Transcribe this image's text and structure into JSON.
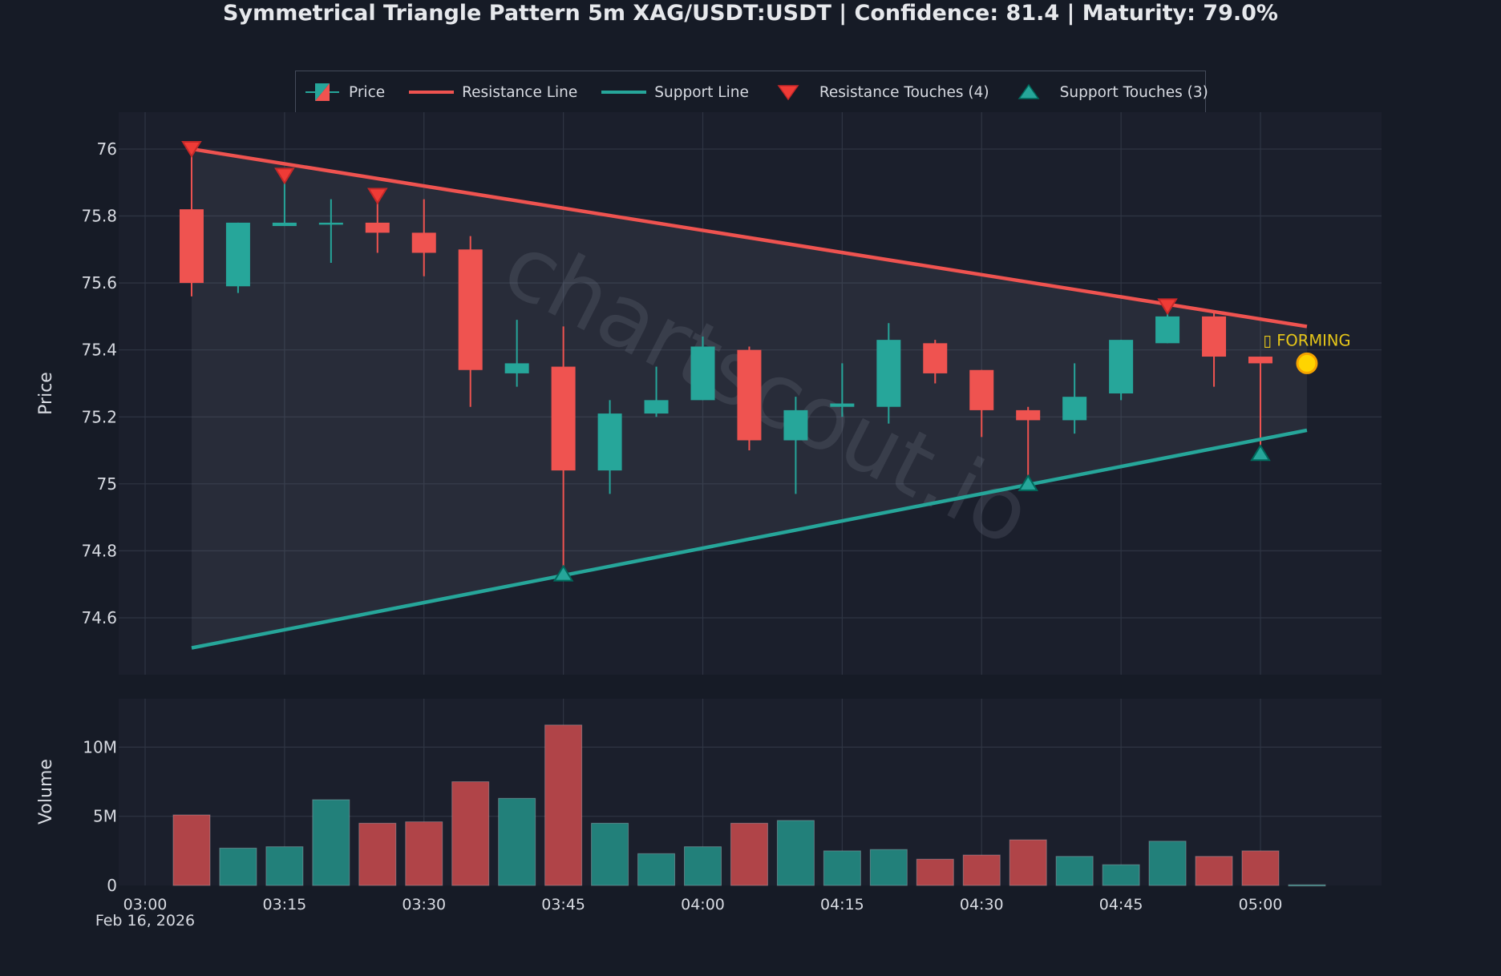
{
  "title": "Symmetrical Triangle Pattern 5m XAG/USDT:USDT | Confidence: 81.4 | Maturity: 79.0%",
  "legend": {
    "items": [
      {
        "label": "Price",
        "icon": "candlestick-icon"
      },
      {
        "label": "Resistance Line",
        "icon": "red-line-icon"
      },
      {
        "label": "Support Line",
        "icon": "teal-line-icon"
      },
      {
        "label": "Resistance Touches (4)",
        "icon": "triangle-down-icon"
      },
      {
        "label": "Support Touches (3)",
        "icon": "triangle-up-icon"
      }
    ]
  },
  "annotation": {
    "label": "▯ FORMING",
    "color": "#e6c619"
  },
  "watermark": "chartscout.io",
  "axes": {
    "price_label": "Price",
    "volume_label": "Volume",
    "date_label": "Feb 16, 2026"
  },
  "colors": {
    "background": "#161b26",
    "plot_bg": "#1b1f2c",
    "up": "#26a69a",
    "down": "#ef5350",
    "resistance": "#ef5350",
    "support": "#26a69a",
    "triangle_fill": "rgba(120,125,145,0.14)",
    "grid": "#2f3543",
    "forming": "#ffd400"
  },
  "chart_data": [
    {
      "type": "candlestick",
      "title": "Symmetrical Triangle Pattern 5m XAG/USDT:USDT | Confidence: 81.4 | Maturity: 79.0%",
      "xlabel": "",
      "ylabel": "Price",
      "ylim": [
        74.43,
        76.11
      ],
      "yticks": [
        74.6,
        74.8,
        75,
        75.2,
        75.4,
        75.6,
        75.8,
        76
      ],
      "ytick_labels": [
        "74.6",
        "74.8",
        "75",
        "75.2",
        "75.4",
        "75.6",
        "75.8",
        "76"
      ],
      "xticks": [
        "03:00",
        "03:15",
        "03:30",
        "03:45",
        "04:00",
        "04:15",
        "04:30",
        "04:45",
        "05:00"
      ],
      "grid": true,
      "legend_position": "top",
      "x": [
        "03:05",
        "03:10",
        "03:15",
        "03:20",
        "03:25",
        "03:30",
        "03:35",
        "03:40",
        "03:45",
        "03:50",
        "03:55",
        "04:00",
        "04:05",
        "04:10",
        "04:15",
        "04:20",
        "04:25",
        "04:30",
        "04:35",
        "04:40",
        "04:45",
        "04:50",
        "04:55",
        "05:00"
      ],
      "open": [
        75.82,
        75.59,
        75.77,
        75.78,
        75.78,
        75.75,
        75.7,
        75.33,
        75.35,
        75.04,
        75.21,
        75.25,
        75.4,
        75.13,
        75.23,
        75.23,
        75.42,
        75.34,
        75.22,
        75.19,
        75.27,
        75.42,
        75.5,
        75.38
      ],
      "high": [
        76.0,
        75.78,
        75.92,
        75.85,
        75.86,
        75.85,
        75.74,
        75.49,
        75.47,
        75.25,
        75.35,
        75.44,
        75.41,
        75.26,
        75.36,
        75.48,
        75.43,
        75.34,
        75.23,
        75.36,
        75.43,
        75.53,
        75.51,
        75.38
      ],
      "low": [
        75.56,
        75.57,
        75.77,
        75.66,
        75.69,
        75.62,
        75.23,
        75.29,
        74.73,
        74.97,
        75.2,
        75.25,
        75.1,
        74.97,
        75.2,
        75.18,
        75.3,
        75.14,
        75.0,
        75.15,
        75.25,
        75.42,
        75.29,
        75.09
      ],
      "close": [
        75.6,
        75.78,
        75.78,
        75.78,
        75.75,
        75.69,
        75.34,
        75.36,
        75.04,
        75.21,
        75.25,
        75.41,
        75.13,
        75.22,
        75.24,
        75.43,
        75.33,
        75.22,
        75.19,
        75.26,
        75.43,
        75.5,
        75.38,
        75.36
      ],
      "series": [
        {
          "name": "Resistance Line",
          "x": [
            "03:05",
            "05:05"
          ],
          "values": [
            76.0,
            75.47
          ]
        },
        {
          "name": "Support Line",
          "x": [
            "03:05",
            "05:05"
          ],
          "values": [
            74.51,
            75.16
          ]
        },
        {
          "name": "Resistance Touches (4)",
          "x": [
            "03:05",
            "03:15",
            "03:25",
            "04:50"
          ],
          "values": [
            76.0,
            75.92,
            75.86,
            75.53
          ]
        },
        {
          "name": "Support Touches (3)",
          "x": [
            "03:45",
            "04:35",
            "05:00"
          ],
          "values": [
            74.73,
            75.0,
            75.09
          ]
        }
      ],
      "annotations": [
        {
          "text": "FORMING",
          "x": "05:05",
          "y": 75.36
        }
      ]
    },
    {
      "type": "bar",
      "ylabel": "Volume",
      "ylim": [
        0,
        13.5
      ],
      "yticks": [
        0,
        5,
        10
      ],
      "ytick_labels": [
        "0",
        "5M",
        "10M"
      ],
      "categories": [
        "03:05",
        "03:10",
        "03:15",
        "03:20",
        "03:25",
        "03:30",
        "03:35",
        "03:40",
        "03:45",
        "03:50",
        "03:55",
        "04:00",
        "04:05",
        "04:10",
        "04:15",
        "04:20",
        "04:25",
        "04:30",
        "04:35",
        "04:40",
        "04:45",
        "04:50",
        "04:55",
        "05:00",
        "05:05"
      ],
      "values": [
        5.1,
        2.7,
        2.8,
        6.2,
        4.5,
        4.6,
        7.5,
        6.3,
        11.6,
        4.5,
        2.3,
        2.8,
        4.5,
        4.7,
        2.5,
        2.6,
        1.9,
        2.2,
        3.3,
        2.1,
        1.5,
        3.2,
        2.1,
        2.5,
        0.05
      ],
      "unit": "M",
      "colors_by_direction": [
        "down",
        "up",
        "up",
        "up",
        "down",
        "down",
        "down",
        "up",
        "down",
        "up",
        "up",
        "up",
        "down",
        "up",
        "up",
        "up",
        "down",
        "down",
        "down",
        "up",
        "up",
        "up",
        "down",
        "down",
        "up"
      ]
    }
  ]
}
